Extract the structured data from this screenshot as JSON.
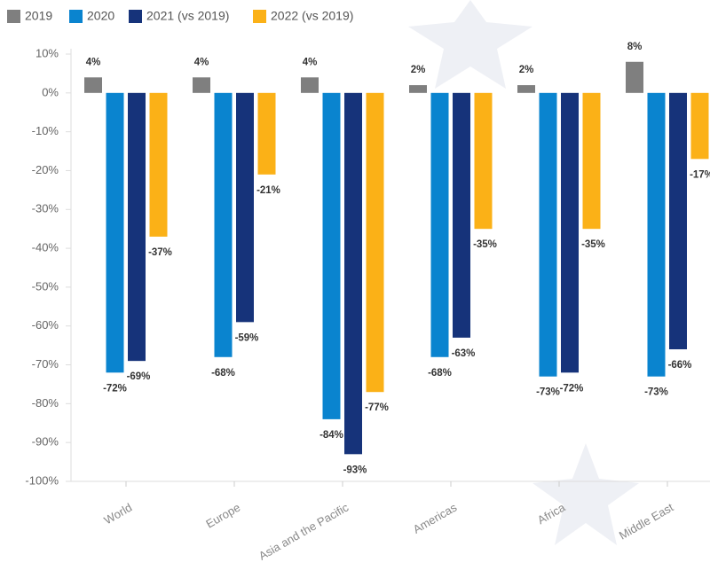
{
  "chart_data": {
    "type": "bar",
    "categories": [
      "World",
      "Europe",
      "Asia and the Pacific",
      "Americas",
      "Africa",
      "Middle East"
    ],
    "series": [
      {
        "name": "2019",
        "color": "#7f7f7f",
        "values": [
          4,
          4,
          4,
          2,
          2,
          8
        ],
        "value_labels": [
          "4%",
          "4%",
          "4%",
          "2%",
          "2%",
          "8%"
        ]
      },
      {
        "name": "2020",
        "color": "#0a84cf",
        "values": [
          -72,
          -68,
          -84,
          -68,
          -73,
          -73
        ],
        "value_labels": [
          "-72%",
          "-68%",
          "-84%",
          "-68%",
          "-73%",
          "-73%"
        ]
      },
      {
        "name": "2021 (vs 2019)",
        "color": "#16337a",
        "values": [
          -69,
          -59,
          -93,
          -63,
          -72,
          -66
        ],
        "value_labels": [
          "-69%",
          "-59%",
          "-93%",
          "-63%",
          "-72%",
          "-66%"
        ]
      },
      {
        "name": "2022 (vs 2019)",
        "color": "#fbb117",
        "values": [
          -37,
          -21,
          -77,
          -35,
          -35,
          -17
        ],
        "value_labels": [
          "-37%",
          "-21%",
          "-77%",
          "-35%",
          "-35%",
          "-17%"
        ]
      }
    ],
    "ylim": [
      -100,
      10
    ],
    "yticks": [
      {
        "value": 10,
        "label": "10%"
      },
      {
        "value": 0,
        "label": "0%"
      },
      {
        "value": -10,
        "label": "-10%"
      },
      {
        "value": -20,
        "label": "-20%"
      },
      {
        "value": -30,
        "label": "-30%"
      },
      {
        "value": -40,
        "label": "-40%"
      },
      {
        "value": -50,
        "label": "-50%"
      },
      {
        "value": -60,
        "label": "-60%"
      },
      {
        "value": -70,
        "label": "-70%"
      },
      {
        "value": -80,
        "label": "-80%"
      },
      {
        "value": -90,
        "label": "-90%"
      },
      {
        "value": -100,
        "label": "-100%"
      }
    ],
    "legend": "top-left"
  }
}
